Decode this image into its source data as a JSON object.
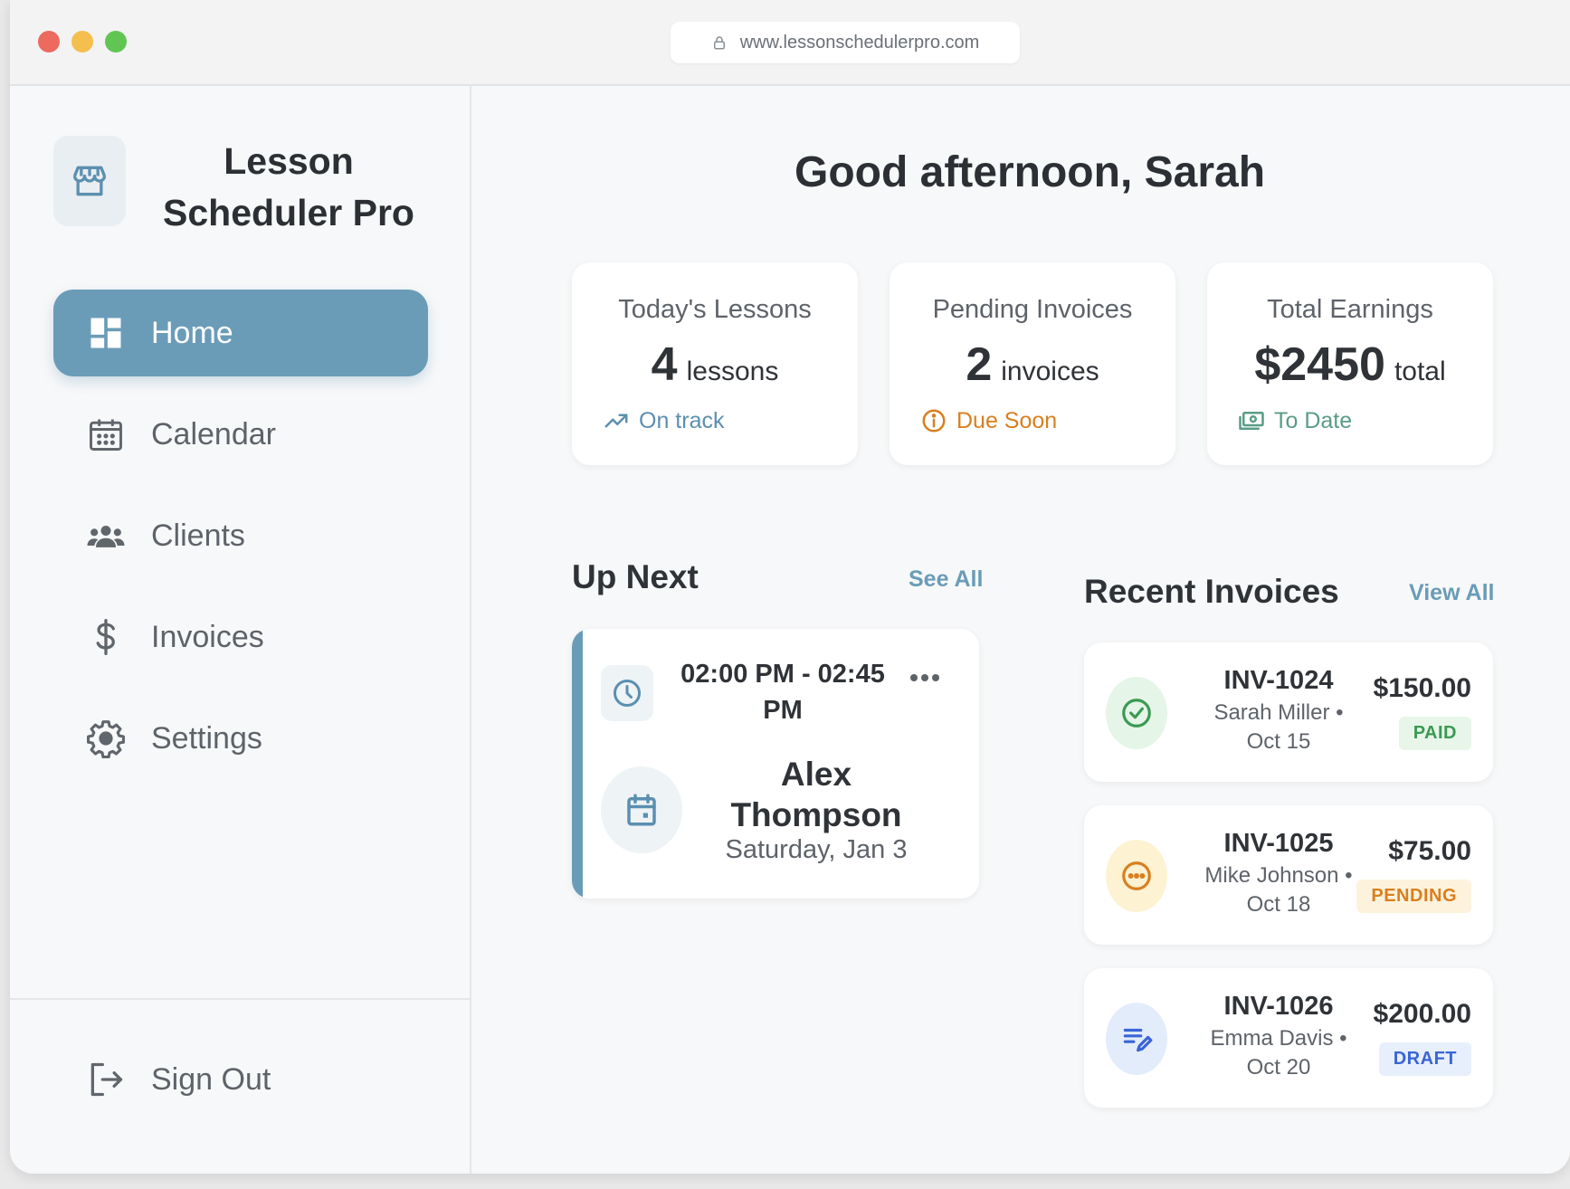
{
  "browser": {
    "url": "www.lessonschedulerpro.com"
  },
  "sidebar": {
    "brand_line1": "Lesson",
    "brand_line2": "Scheduler Pro",
    "items": [
      {
        "label": "Home",
        "icon": "dashboard-icon",
        "active": true
      },
      {
        "label": "Calendar",
        "icon": "calendar-icon"
      },
      {
        "label": "Clients",
        "icon": "users-icon"
      },
      {
        "label": "Invoices",
        "icon": "dollar-icon"
      },
      {
        "label": "Settings",
        "icon": "gear-icon"
      }
    ],
    "sign_out": "Sign Out"
  },
  "main": {
    "greeting": "Good afternoon, Sarah",
    "stats": [
      {
        "title": "Today's Lessons",
        "value": "4",
        "unit": "lessons",
        "status": "On track",
        "status_color": "#5b8fb0",
        "icon": "trend-up-icon"
      },
      {
        "title": "Pending Invoices",
        "value": "2",
        "unit": "invoices",
        "status": "Due Soon",
        "status_color": "#d97f1f",
        "icon": "info-icon"
      },
      {
        "title": "Total Earnings",
        "value": "$2450",
        "unit": "total",
        "status": "To Date",
        "status_color": "#5a9c86",
        "icon": "cash-icon"
      }
    ],
    "up_next": {
      "title": "Up Next",
      "link": "See All",
      "time_line1": "02:00 PM - 02:45",
      "time_line2": "PM",
      "name_line1": "Alex",
      "name_line2": "Thompson",
      "date": "Saturday, Jan 3"
    },
    "recent_invoices": {
      "title": "Recent Invoices",
      "link": "View All",
      "items": [
        {
          "id": "INV-1024",
          "client": "Sarah Miller •",
          "date": "Oct 15",
          "amount": "$150.00",
          "status": "PAID",
          "status_color": "#3b9a52",
          "badge_bg": "#e8f6ea",
          "icon": "check-circle-icon"
        },
        {
          "id": "INV-1025",
          "client": "Mike Johnson •",
          "date": "Oct 18",
          "amount": "$75.00",
          "status": "PENDING",
          "status_color": "#d97f1f",
          "badge_bg": "#fdf3dd",
          "icon": "pending-circle-icon"
        },
        {
          "id": "INV-1026",
          "client": "Emma Davis •",
          "date": "Oct 20",
          "amount": "$200.00",
          "status": "DRAFT",
          "status_color": "#3a64d8",
          "badge_bg": "#e8effc",
          "icon": "edit-list-icon"
        }
      ]
    }
  },
  "colors": {
    "accent": "#6a9cb8",
    "text": "#2f3337",
    "muted": "#5e6369"
  }
}
